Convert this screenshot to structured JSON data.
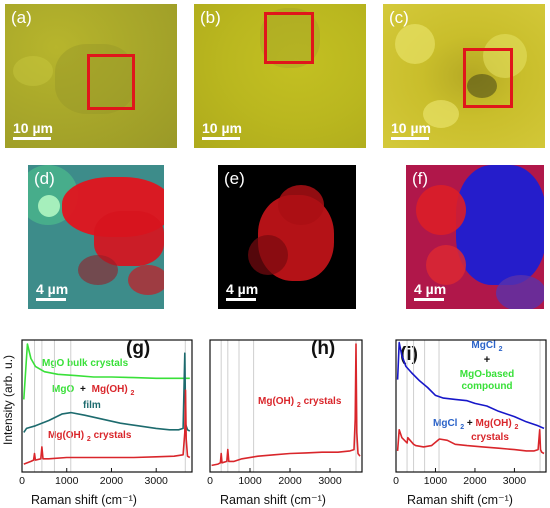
{
  "optical": [
    {
      "label": "(a)",
      "scalebar": "10 µm"
    },
    {
      "label": "(b)",
      "scalebar": "10 µm"
    },
    {
      "label": "(c)",
      "scalebar": "10 µm"
    }
  ],
  "maps": [
    {
      "label": "(d)",
      "scalebar": "4 µm"
    },
    {
      "label": "(e)",
      "scalebar": "4 µm"
    },
    {
      "label": "(f)",
      "scalebar": "4 µm"
    }
  ],
  "colors": {
    "mgo_bulk": "#39e039",
    "mgo_film": "#1d6b6e",
    "mgoh2": "#d9262b",
    "mgcl2": "#1717c9",
    "roi": "#e0161b",
    "annot_blue": "#2b63c9",
    "grid": "#cfcfcf"
  },
  "chart_data": [
    {
      "type": "line",
      "panel": "(g)",
      "xlabel": "Raman shift (cm⁻¹)",
      "ylabel": "Intensity (arb. u.)",
      "xlim": [
        0,
        3800
      ],
      "xticks": [
        0,
        1000,
        2000,
        3000
      ],
      "reference_lines": [
        280,
        445,
        725,
        1090,
        3650
      ],
      "series": [
        {
          "key": "bulk",
          "color": "#39e039",
          "x": [
            40,
            120,
            200,
            300,
            500,
            800,
            1200,
            1600,
            2000,
            2500,
            3000,
            3400,
            3600,
            3650,
            3700,
            3750
          ],
          "y": [
            0.55,
            0.97,
            0.86,
            0.8,
            0.76,
            0.74,
            0.73,
            0.72,
            0.72,
            0.715,
            0.71,
            0.71,
            0.71,
            0.71,
            0.71,
            0.71
          ]
        },
        {
          "key": "film",
          "color": "#1d6b6e",
          "x": [
            40,
            100,
            300,
            600,
            900,
            1100,
            1400,
            1800,
            2200,
            2600,
            3000,
            3300,
            3500,
            3600,
            3640,
            3660,
            3700,
            3750
          ],
          "y": [
            0.3,
            0.33,
            0.35,
            0.39,
            0.44,
            0.45,
            0.43,
            0.4,
            0.37,
            0.35,
            0.33,
            0.32,
            0.32,
            0.33,
            0.9,
            0.36,
            0.32,
            0.31
          ]
        },
        {
          "key": "crystals",
          "color": "#d9262b",
          "x": [
            40,
            200,
            260,
            280,
            300,
            420,
            445,
            470,
            600,
            1000,
            1500,
            2000,
            2500,
            3000,
            3400,
            3600,
            3640,
            3655,
            3670,
            3700,
            3750
          ],
          "y": [
            0.06,
            0.08,
            0.09,
            0.14,
            0.09,
            0.1,
            0.19,
            0.1,
            0.1,
            0.11,
            0.11,
            0.11,
            0.11,
            0.115,
            0.12,
            0.13,
            0.3,
            0.62,
            0.25,
            0.12,
            0.11
          ]
        }
      ],
      "annotations": {
        "tag": "(g)",
        "bulk": "MgO bulk crystals",
        "film_a": "MgO",
        "film_b": "+",
        "film_c": "Mg(OH)",
        "film_sub": "2",
        "film_d": "film",
        "crystals_a": "Mg(OH)",
        "crystals_sub": "2",
        "crystals_b": " crystals"
      },
      "tick_labels": [
        "0",
        "1000",
        "2000",
        "3000"
      ]
    },
    {
      "type": "line",
      "panel": "(h)",
      "xlabel": "Raman shift (cm⁻¹)",
      "xlim": [
        0,
        3800
      ],
      "xticks": [
        0,
        1000,
        2000,
        3000
      ],
      "reference_lines": [
        280,
        445,
        725,
        1090,
        3650
      ],
      "series": [
        {
          "key": "crystals",
          "color": "#d9262b",
          "x": [
            40,
            200,
            260,
            280,
            300,
            420,
            445,
            470,
            600,
            800,
            1200,
            1600,
            2000,
            2400,
            2800,
            3200,
            3500,
            3600,
            3630,
            3650,
            3670,
            3700,
            3750
          ],
          "y": [
            0.05,
            0.06,
            0.07,
            0.14,
            0.07,
            0.08,
            0.17,
            0.08,
            0.08,
            0.1,
            0.12,
            0.13,
            0.14,
            0.145,
            0.15,
            0.15,
            0.16,
            0.17,
            0.4,
            0.97,
            0.3,
            0.14,
            0.12
          ]
        }
      ],
      "annotations": {
        "tag": "(h)",
        "crystals_a": "Mg(OH)",
        "crystals_sub": "2",
        "crystals_b": " crystals"
      },
      "tick_labels": [
        "0",
        "1000",
        "2000",
        "3000"
      ]
    },
    {
      "type": "line",
      "panel": "(i)",
      "xlabel": "Raman shift (cm⁻¹)",
      "xlim": [
        0,
        3800
      ],
      "xticks": [
        0,
        1000,
        2000,
        3000
      ],
      "reference_lines": [
        280,
        445,
        725,
        1090,
        3650
      ],
      "series": [
        {
          "key": "mgcl2_mgo",
          "color": "#1717c9",
          "x": [
            40,
            80,
            150,
            250,
            400,
            600,
            800,
            1000,
            1200,
            1500,
            1800,
            2000,
            2300,
            2600,
            3000,
            3300,
            3600,
            3750
          ],
          "y": [
            0.7,
            0.98,
            0.88,
            0.8,
            0.75,
            0.69,
            0.64,
            0.58,
            0.56,
            0.55,
            0.54,
            0.52,
            0.5,
            0.46,
            0.42,
            0.38,
            0.35,
            0.33
          ]
        },
        {
          "key": "mgcl2_mgoh2",
          "color": "#d9262b",
          "x": [
            40,
            80,
            150,
            280,
            300,
            445,
            500,
            700,
            900,
            1100,
            1300,
            1500,
            1800,
            2200,
            2600,
            3000,
            3300,
            3500,
            3600,
            3640,
            3660,
            3690,
            3750
          ],
          "y": [
            0.16,
            0.32,
            0.26,
            0.22,
            0.26,
            0.21,
            0.2,
            0.19,
            0.2,
            0.25,
            0.24,
            0.21,
            0.2,
            0.19,
            0.18,
            0.17,
            0.16,
            0.16,
            0.17,
            0.32,
            0.17,
            0.15,
            0.14
          ]
        }
      ],
      "annotations": {
        "tag": "(i)",
        "mgcl2": "MgCl",
        "mgcl2_sub": "2",
        "plus": "+",
        "mgo_based_1": "MgO-based",
        "mgo_based_2": "compound",
        "lower_a": "MgCl",
        "lower_sub": "2",
        "lower_plus": " + ",
        "lower_b": "Mg(OH)",
        "lower_sub2": "2",
        "lower_c": "crystals"
      },
      "tick_labels": [
        "0",
        "1000",
        "2000",
        "3000"
      ]
    }
  ]
}
